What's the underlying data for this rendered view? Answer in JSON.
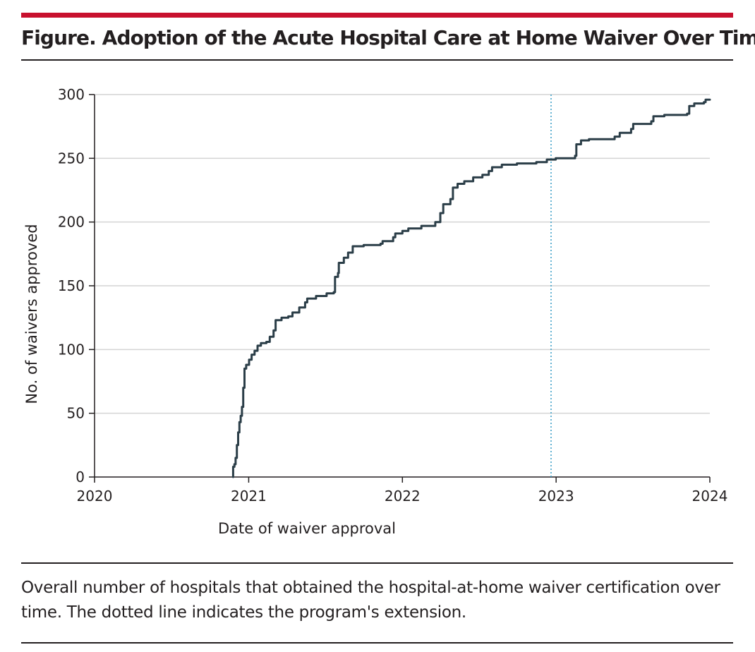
{
  "figure": {
    "title": "Figure. Adoption of the Acute Hospital Care at Home Waiver Over Time",
    "caption": "Overall number of hospitals that obtained the hospital-at-home waiver certification over time. The dotted line indicates the program's extension."
  },
  "colors": {
    "accent_rule": "#c8102e",
    "line": "#2b3e48",
    "reference_line": "#3fa0c8",
    "grid": "#d4d4d4",
    "text": "#231f20"
  },
  "chart_data": {
    "type": "line",
    "title": "",
    "xlabel": "Date of waiver approval",
    "ylabel": "No. of waivers approved",
    "xlim": [
      "2020-01-01",
      "2024-01-01"
    ],
    "ylim": [
      0,
      300
    ],
    "x_ticks": [
      {
        "label": "2020",
        "value": "2020-01-01"
      },
      {
        "label": "2021",
        "value": "2021-01-01"
      },
      {
        "label": "2022",
        "value": "2022-01-01"
      },
      {
        "label": "2023",
        "value": "2023-01-01"
      },
      {
        "label": "2024",
        "value": "2024-01-01"
      }
    ],
    "y_ticks": [
      0,
      50,
      100,
      150,
      200,
      250,
      300
    ],
    "grid": "horizontal",
    "reference_line": {
      "x": "2022-12-20",
      "style": "dotted"
    },
    "series": [
      {
        "step": true,
        "points": [
          [
            "2020-11-25",
            0
          ],
          [
            "2020-11-25",
            8
          ],
          [
            "2020-11-28",
            10
          ],
          [
            "2020-12-01",
            15
          ],
          [
            "2020-12-04",
            25
          ],
          [
            "2020-12-07",
            35
          ],
          [
            "2020-12-10",
            43
          ],
          [
            "2020-12-13",
            48
          ],
          [
            "2020-12-16",
            55
          ],
          [
            "2020-12-19",
            70
          ],
          [
            "2020-12-22",
            85
          ],
          [
            "2020-12-26",
            88
          ],
          [
            "2021-01-02",
            92
          ],
          [
            "2021-01-08",
            96
          ],
          [
            "2021-01-15",
            99
          ],
          [
            "2021-01-22",
            103
          ],
          [
            "2021-01-30",
            105
          ],
          [
            "2021-02-12",
            106
          ],
          [
            "2021-02-20",
            110
          ],
          [
            "2021-03-01",
            115
          ],
          [
            "2021-03-06",
            123
          ],
          [
            "2021-03-20",
            125
          ],
          [
            "2021-04-05",
            126
          ],
          [
            "2021-04-15",
            129
          ],
          [
            "2021-05-01",
            133
          ],
          [
            "2021-05-15",
            137
          ],
          [
            "2021-05-20",
            140
          ],
          [
            "2021-06-10",
            142
          ],
          [
            "2021-07-05",
            144
          ],
          [
            "2021-07-22",
            145
          ],
          [
            "2021-07-25",
            157
          ],
          [
            "2021-08-01",
            160
          ],
          [
            "2021-08-03",
            168
          ],
          [
            "2021-08-15",
            172
          ],
          [
            "2021-08-25",
            176
          ],
          [
            "2021-09-05",
            181
          ],
          [
            "2021-10-01",
            182
          ],
          [
            "2021-11-10",
            183
          ],
          [
            "2021-11-15",
            185
          ],
          [
            "2021-12-10",
            188
          ],
          [
            "2021-12-15",
            191
          ],
          [
            "2022-01-01",
            193
          ],
          [
            "2022-01-15",
            195
          ],
          [
            "2022-02-15",
            197
          ],
          [
            "2022-03-20",
            200
          ],
          [
            "2022-04-01",
            207
          ],
          [
            "2022-04-08",
            214
          ],
          [
            "2022-04-25",
            218
          ],
          [
            "2022-05-01",
            227
          ],
          [
            "2022-05-12",
            230
          ],
          [
            "2022-05-28",
            232
          ],
          [
            "2022-06-18",
            235
          ],
          [
            "2022-07-10",
            237
          ],
          [
            "2022-07-25",
            240
          ],
          [
            "2022-08-02",
            243
          ],
          [
            "2022-08-25",
            245
          ],
          [
            "2022-09-30",
            246
          ],
          [
            "2022-11-15",
            247
          ],
          [
            "2022-12-10",
            249
          ],
          [
            "2022-12-31",
            250
          ],
          [
            "2023-02-15",
            252
          ],
          [
            "2023-02-18",
            261
          ],
          [
            "2023-03-01",
            264
          ],
          [
            "2023-03-20",
            265
          ],
          [
            "2023-05-20",
            267
          ],
          [
            "2023-06-01",
            270
          ],
          [
            "2023-06-28",
            273
          ],
          [
            "2023-07-03",
            277
          ],
          [
            "2023-08-15",
            279
          ],
          [
            "2023-08-20",
            283
          ],
          [
            "2023-09-15",
            284
          ],
          [
            "2023-11-08",
            285
          ],
          [
            "2023-11-13",
            291
          ],
          [
            "2023-11-25",
            293
          ],
          [
            "2023-12-18",
            294
          ],
          [
            "2023-12-22",
            296
          ],
          [
            "2024-01-01",
            296
          ]
        ]
      }
    ]
  }
}
